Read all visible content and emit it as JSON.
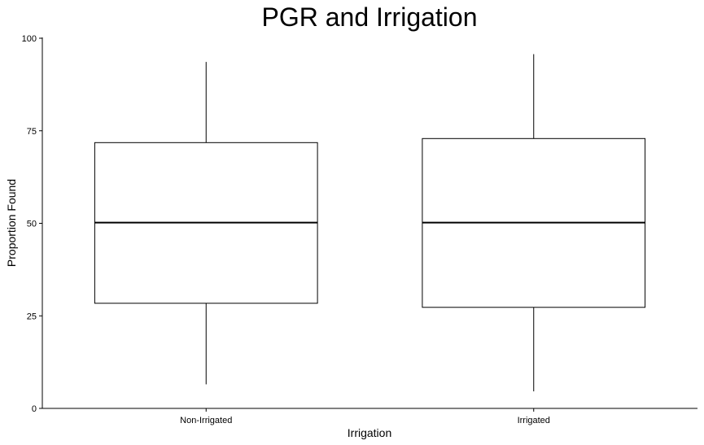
{
  "chart_data": {
    "type": "boxplot",
    "title": "PGR and Irrigation",
    "xlabel": "Irrigation",
    "ylabel": "Proportion Found",
    "categories": [
      "Non-Irrigated",
      "Irrigated"
    ],
    "ylim": [
      0,
      100
    ],
    "yticks": [
      "0",
      "25",
      "50",
      "75",
      "100"
    ],
    "grid": false,
    "legend": "none",
    "boxes": [
      {
        "category": "Non-Irrigated",
        "min": 6.5,
        "q1": 28.4,
        "median": 50.2,
        "q3": 71.8,
        "max": 93.6
      },
      {
        "category": "Irrigated",
        "min": 4.6,
        "q1": 27.3,
        "median": 50.2,
        "q3": 72.9,
        "max": 95.7
      }
    ]
  }
}
